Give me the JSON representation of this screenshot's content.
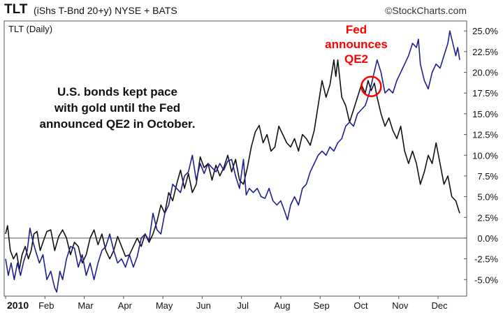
{
  "header": {
    "symbol": "TLT",
    "description": "(iShs T-Bnd 20+y) NYSE + BATS",
    "brand": "©StockCharts.com"
  },
  "chart_data": {
    "type": "line",
    "inner_label": "TLT (Daily)",
    "xlabels": [
      "2010",
      "Feb",
      "Mar",
      "Apr",
      "May",
      "Jun",
      "Jul",
      "Aug",
      "Sep",
      "Oct",
      "Nov",
      "Dec"
    ],
    "ytick_labels": [
      "25.0%",
      "22.5%",
      "20.0%",
      "17.5%",
      "15.0%",
      "12.5%",
      "10.0%",
      "7.5%",
      "5.0%",
      "2.5%",
      "0.0%",
      "-2.5%",
      "-5.0%"
    ],
    "ylim": [
      -7.0,
      26.2
    ],
    "x_range_months": [
      0,
      11.55
    ],
    "grid": false,
    "series": [
      {
        "color": "#111111",
        "points": [
          [
            0,
            0.5
          ],
          [
            0.05,
            1.5
          ],
          [
            0.12,
            -1.5
          ],
          [
            0.2,
            -2.5
          ],
          [
            0.28,
            -1.8
          ],
          [
            0.35,
            -3.8
          ],
          [
            0.42,
            -2
          ],
          [
            0.5,
            -1
          ],
          [
            0.58,
            -2.5
          ],
          [
            0.65,
            -1.5
          ],
          [
            0.72,
            0.5
          ],
          [
            0.8,
            0.8
          ],
          [
            0.88,
            -1.5
          ],
          [
            0.95,
            -0.5
          ],
          [
            1.05,
            0.8
          ],
          [
            1.15,
            1
          ],
          [
            1.25,
            -1.5
          ],
          [
            1.35,
            0.2
          ],
          [
            1.45,
            1
          ],
          [
            1.55,
            0
          ],
          [
            1.65,
            -2
          ],
          [
            1.75,
            -0.5
          ],
          [
            1.85,
            -1
          ],
          [
            1.95,
            -3
          ],
          [
            2.05,
            -2
          ],
          [
            2.15,
            0
          ],
          [
            2.25,
            1
          ],
          [
            2.35,
            -0.8
          ],
          [
            2.45,
            0.5
          ],
          [
            2.55,
            -1.5
          ],
          [
            2.65,
            -2.5
          ],
          [
            2.75,
            -1.5
          ],
          [
            2.85,
            0.2
          ],
          [
            2.95,
            -1
          ],
          [
            3.05,
            -2.2
          ],
          [
            3.15,
            -2
          ],
          [
            3.25,
            -1
          ],
          [
            3.35,
            0
          ],
          [
            3.45,
            -1
          ],
          [
            3.55,
            0.5
          ],
          [
            3.65,
            -0.5
          ],
          [
            3.75,
            0.5
          ],
          [
            3.85,
            2
          ],
          [
            3.95,
            4
          ],
          [
            4.05,
            3
          ],
          [
            4.15,
            5.5
          ],
          [
            4.25,
            4.5
          ],
          [
            4.35,
            6.5
          ],
          [
            4.45,
            8.2
          ],
          [
            4.55,
            6
          ],
          [
            4.65,
            7.8
          ],
          [
            4.75,
            5.5
          ],
          [
            4.85,
            6.5
          ],
          [
            4.95,
            9.8
          ],
          [
            5.05,
            8.5
          ],
          [
            5.15,
            9
          ],
          [
            5.25,
            7
          ],
          [
            5.35,
            8.8
          ],
          [
            5.45,
            7.5
          ],
          [
            5.55,
            8.5
          ],
          [
            5.65,
            10
          ],
          [
            5.75,
            8
          ],
          [
            5.85,
            9.5
          ],
          [
            5.95,
            7
          ],
          [
            6.05,
            6.5
          ],
          [
            6.15,
            8.5
          ],
          [
            6.25,
            11
          ],
          [
            6.35,
            12.8
          ],
          [
            6.45,
            13.6
          ],
          [
            6.55,
            11.5
          ],
          [
            6.65,
            12.5
          ],
          [
            6.75,
            10.5
          ],
          [
            6.85,
            11
          ],
          [
            6.95,
            13.5
          ],
          [
            7.05,
            12.5
          ],
          [
            7.15,
            11.5
          ],
          [
            7.25,
            11
          ],
          [
            7.35,
            12
          ],
          [
            7.45,
            10.5
          ],
          [
            7.55,
            12.5
          ],
          [
            7.65,
            12
          ],
          [
            7.75,
            11.2
          ],
          [
            7.85,
            13
          ],
          [
            7.95,
            16
          ],
          [
            8.05,
            19
          ],
          [
            8.15,
            17
          ],
          [
            8.25,
            18.5
          ],
          [
            8.35,
            21.5
          ],
          [
            8.4,
            19.5
          ],
          [
            8.45,
            21.5
          ],
          [
            8.55,
            17
          ],
          [
            8.65,
            16
          ],
          [
            8.75,
            14
          ],
          [
            8.85,
            15.5
          ],
          [
            8.95,
            17
          ],
          [
            9.05,
            18.5
          ],
          [
            9.15,
            17.5
          ],
          [
            9.22,
            19
          ],
          [
            9.3,
            17.8
          ],
          [
            9.38,
            18.7
          ],
          [
            9.45,
            17
          ],
          [
            9.55,
            15
          ],
          [
            9.65,
            13.5
          ],
          [
            9.75,
            14.5
          ],
          [
            9.85,
            13
          ],
          [
            9.95,
            12
          ],
          [
            10.05,
            13.5
          ],
          [
            10.15,
            10.5
          ],
          [
            10.25,
            9
          ],
          [
            10.35,
            10.5
          ],
          [
            10.45,
            9
          ],
          [
            10.55,
            6.5
          ],
          [
            10.65,
            8
          ],
          [
            10.75,
            10
          ],
          [
            10.85,
            9
          ],
          [
            10.95,
            11.5
          ],
          [
            11.05,
            9
          ],
          [
            11.15,
            6.5
          ],
          [
            11.25,
            7.5
          ],
          [
            11.35,
            5
          ],
          [
            11.45,
            4.5
          ],
          [
            11.55,
            3
          ]
        ]
      },
      {
        "color": "#1f1f8f",
        "points": [
          [
            0,
            -2.5
          ],
          [
            0.07,
            -4.5
          ],
          [
            0.14,
            -3
          ],
          [
            0.22,
            -5
          ],
          [
            0.3,
            -3
          ],
          [
            0.38,
            -4.5
          ],
          [
            0.46,
            -2.8
          ],
          [
            0.55,
            -1.5
          ],
          [
            0.62,
            1.2
          ],
          [
            0.7,
            -0.5
          ],
          [
            0.78,
            -1.8
          ],
          [
            0.86,
            -3
          ],
          [
            0.95,
            -2
          ],
          [
            1.05,
            -5
          ],
          [
            1.15,
            -4
          ],
          [
            1.25,
            -6
          ],
          [
            1.3,
            -6.5
          ],
          [
            1.38,
            -4
          ],
          [
            1.45,
            -5
          ],
          [
            1.55,
            -2.5
          ],
          [
            1.65,
            -1
          ],
          [
            1.75,
            -1.2
          ],
          [
            1.85,
            -3.5
          ],
          [
            1.95,
            -2
          ],
          [
            2.05,
            -4.5
          ],
          [
            2.15,
            -3
          ],
          [
            2.25,
            -5
          ],
          [
            2.35,
            -3
          ],
          [
            2.45,
            -1.5
          ],
          [
            2.55,
            -1
          ],
          [
            2.65,
            0.5
          ],
          [
            2.75,
            -1.5
          ],
          [
            2.85,
            -3
          ],
          [
            2.95,
            -2.5
          ],
          [
            3.05,
            -3.5
          ],
          [
            3.15,
            -2
          ],
          [
            3.25,
            -3.5
          ],
          [
            3.35,
            -2.2
          ],
          [
            3.45,
            0
          ],
          [
            3.55,
            0.5
          ],
          [
            3.65,
            -0.3
          ],
          [
            3.75,
            3
          ],
          [
            3.85,
            1
          ],
          [
            3.95,
            0.5
          ],
          [
            4.05,
            3
          ],
          [
            4.15,
            4
          ],
          [
            4.25,
            6.5
          ],
          [
            4.35,
            6
          ],
          [
            4.45,
            5.5
          ],
          [
            4.55,
            7.5
          ],
          [
            4.65,
            8
          ],
          [
            4.75,
            10
          ],
          [
            4.85,
            7
          ],
          [
            4.95,
            9
          ],
          [
            5.05,
            7.8
          ],
          [
            5.15,
            9
          ],
          [
            5.25,
            8.5
          ],
          [
            5.35,
            8
          ],
          [
            5.45,
            9
          ],
          [
            5.55,
            8.2
          ],
          [
            5.65,
            9.3
          ],
          [
            5.75,
            9.5
          ],
          [
            5.85,
            7.5
          ],
          [
            5.95,
            6
          ],
          [
            6.05,
            9.5
          ],
          [
            6.12,
            5.2
          ],
          [
            6.2,
            6
          ],
          [
            6.3,
            5.5
          ],
          [
            6.4,
            6
          ],
          [
            6.5,
            5
          ],
          [
            6.6,
            4.8
          ],
          [
            6.7,
            6
          ],
          [
            6.8,
            4.5
          ],
          [
            6.9,
            4
          ],
          [
            7,
            4.5
          ],
          [
            7.1,
            3.2
          ],
          [
            7.17,
            2.2
          ],
          [
            7.25,
            4
          ],
          [
            7.35,
            5
          ],
          [
            7.45,
            4
          ],
          [
            7.55,
            6
          ],
          [
            7.65,
            6.5
          ],
          [
            7.75,
            8
          ],
          [
            7.85,
            9
          ],
          [
            7.95,
            10
          ],
          [
            8.05,
            10.5
          ],
          [
            8.15,
            10
          ],
          [
            8.25,
            11
          ],
          [
            8.35,
            10.5
          ],
          [
            8.45,
            11.5
          ],
          [
            8.55,
            12
          ],
          [
            8.65,
            13.5
          ],
          [
            8.75,
            14
          ],
          [
            8.85,
            13.5
          ],
          [
            8.95,
            15
          ],
          [
            9.05,
            15.5
          ],
          [
            9.15,
            16
          ],
          [
            9.25,
            17.5
          ],
          [
            9.3,
            18.5
          ],
          [
            9.35,
            19.5
          ],
          [
            9.45,
            21.5
          ],
          [
            9.55,
            20
          ],
          [
            9.65,
            17.5
          ],
          [
            9.75,
            18
          ],
          [
            9.85,
            17.5
          ],
          [
            9.95,
            19
          ],
          [
            10.05,
            20
          ],
          [
            10.15,
            21
          ],
          [
            10.25,
            22
          ],
          [
            10.35,
            23.5
          ],
          [
            10.45,
            23
          ],
          [
            10.5,
            24
          ],
          [
            10.55,
            21
          ],
          [
            10.65,
            19
          ],
          [
            10.75,
            18
          ],
          [
            10.85,
            20
          ],
          [
            10.95,
            21
          ],
          [
            11.05,
            20.5
          ],
          [
            11.15,
            22
          ],
          [
            11.25,
            23.5
          ],
          [
            11.3,
            25
          ],
          [
            11.4,
            23
          ],
          [
            11.45,
            22
          ],
          [
            11.5,
            23
          ],
          [
            11.55,
            21.5
          ]
        ]
      }
    ],
    "annotations": {
      "note_lines": [
        "U.S. bonds kept pace",
        "with gold until the Fed",
        "announced QE2 in October."
      ],
      "fed_lines": [
        "Fed",
        "announces",
        "QE2"
      ],
      "circle_at": [
        9.3,
        18.3
      ]
    }
  }
}
